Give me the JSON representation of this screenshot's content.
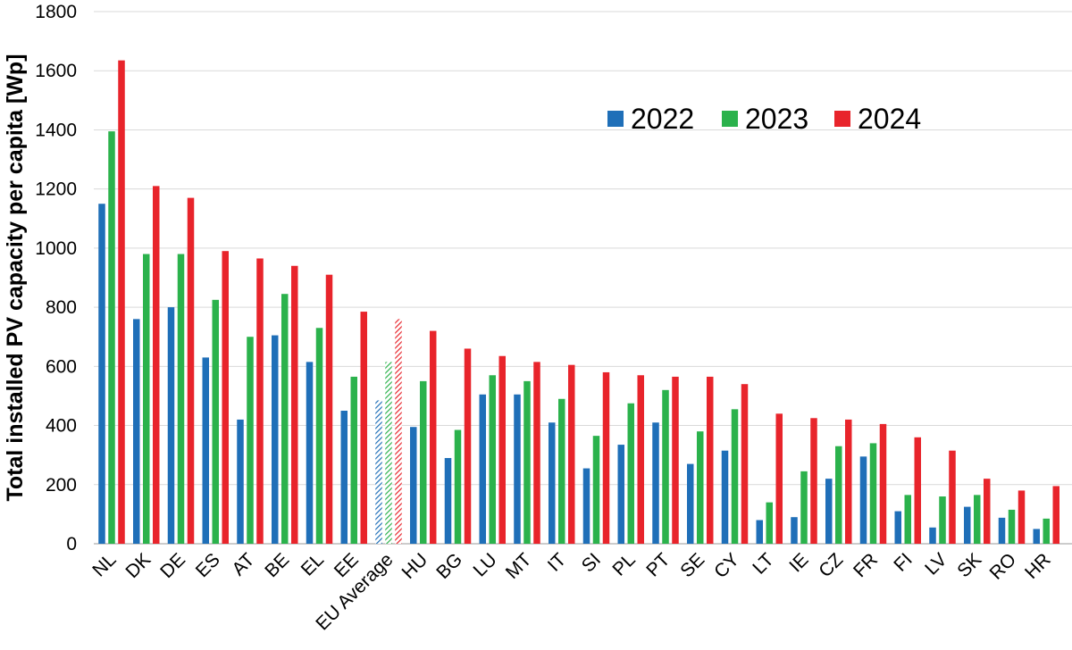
{
  "chart_data": {
    "type": "bar",
    "title": "",
    "xlabel": "",
    "ylabel": "Total installed PV capacity per capita [Wp]",
    "ylim": [
      0,
      1800
    ],
    "yticks": [
      0,
      200,
      400,
      600,
      800,
      1000,
      1200,
      1400,
      1600,
      1800
    ],
    "grid": true,
    "legend_position": "top-right",
    "categories": [
      "NL",
      "DK",
      "DE",
      "ES",
      "AT",
      "BE",
      "EL",
      "EE",
      "EU Average",
      "HU",
      "BG",
      "LU",
      "MT",
      "IT",
      "SI",
      "PL",
      "PT",
      "SE",
      "CY",
      "LT",
      "IE",
      "CZ",
      "FR",
      "FI",
      "LV",
      "SK",
      "RO",
      "HR"
    ],
    "highlighted_category": "EU Average",
    "series": [
      {
        "name": "2022",
        "color": "#1f6fb8",
        "values": [
          1150,
          760,
          800,
          630,
          420,
          705,
          615,
          450,
          485,
          395,
          290,
          505,
          505,
          410,
          255,
          335,
          410,
          270,
          315,
          80,
          90,
          220,
          295,
          110,
          55,
          125,
          88,
          50
        ]
      },
      {
        "name": "2023",
        "color": "#2bb24c",
        "values": [
          1395,
          980,
          980,
          825,
          700,
          845,
          730,
          565,
          615,
          550,
          385,
          570,
          550,
          490,
          365,
          475,
          520,
          380,
          455,
          140,
          245,
          330,
          340,
          165,
          160,
          165,
          115,
          85
        ]
      },
      {
        "name": "2024",
        "color": "#e8242b",
        "values": [
          1635,
          1210,
          1170,
          990,
          965,
          940,
          910,
          785,
          760,
          720,
          660,
          635,
          615,
          605,
          580,
          570,
          565,
          565,
          540,
          440,
          425,
          420,
          405,
          360,
          315,
          220,
          180,
          195
        ]
      }
    ]
  }
}
